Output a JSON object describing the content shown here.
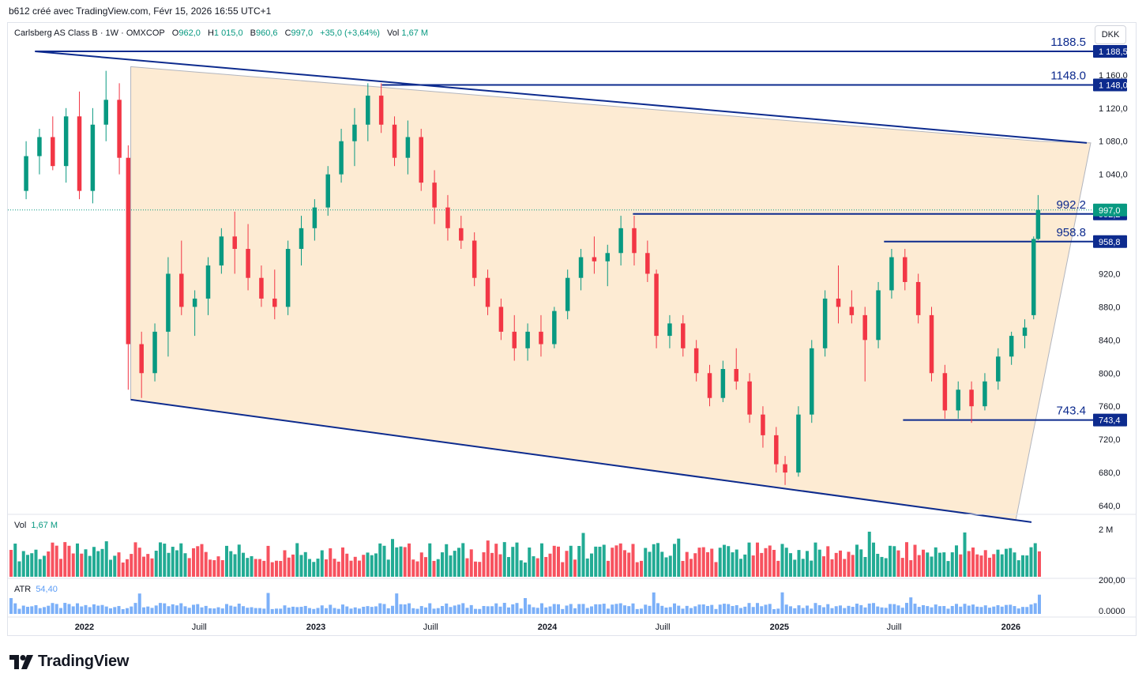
{
  "header": {
    "caption": "b612 créé avec TradingView.com, Févr 15, 2026 16:55 UTC+1",
    "symbol": "Carlsberg AS Class B · 1W · OMXCOP",
    "open_label": "O",
    "open": "962,0",
    "high_label": "H",
    "high": "1 015,0",
    "low_label": "B",
    "low": "960,6",
    "close_label": "C",
    "close": "997,0",
    "change": "+35,0 (+3,64%)",
    "vol_label": "Vol",
    "vol": "1,67 M",
    "currency": "DKK"
  },
  "colors": {
    "up": "#089981",
    "down": "#f23645",
    "line": "#0d2b8e",
    "channel_fill": "#fdebd3",
    "volume_up": "#22ab94",
    "volume_down": "#f7525f",
    "atr": "#5b9cf6"
  },
  "volume_pane": {
    "label": "Vol",
    "value": "1,67 M",
    "axis_label": "2 M"
  },
  "atr_pane": {
    "label": "ATR",
    "value": "54,40",
    "axis_top": "200,00",
    "axis_bottom": "0.0000"
  },
  "brand": {
    "name": "TradingView",
    "icon": "tradingview-logo"
  },
  "chart_data": {
    "type": "candlestick",
    "title": "Carlsberg AS Class B · 1W · OMXCOP",
    "ylim": [
      620,
      1200
    ],
    "y_ticks": [
      "1 160,0",
      "1 120,0",
      "1 080,0",
      "1 040,0",
      "920,0",
      "880,0",
      "840,0",
      "800,0",
      "760,0",
      "720,0",
      "680,0",
      "640,0"
    ],
    "x_ticks": [
      "2022",
      "Juill",
      "2023",
      "Juill",
      "2024",
      "Juill",
      "2025",
      "Juill",
      "2026"
    ],
    "x_range": [
      "2021-10",
      "2026-02"
    ],
    "grid": false,
    "last_price": {
      "value": 997.0,
      "label": "997,0"
    },
    "levels": [
      {
        "value": 1188.5,
        "label": "1188.5",
        "axis_label": "1 188,5",
        "from": "2021-10",
        "to": "2026-02"
      },
      {
        "value": 1148.0,
        "label": "1148.0",
        "axis_label": "1 148,0",
        "from": "2023-04",
        "to": "2026-02"
      },
      {
        "value": 992.2,
        "label": "992.2",
        "axis_label": "992,2",
        "from": "2024-05",
        "to": "2026-02"
      },
      {
        "value": 958.8,
        "label": "958.8",
        "axis_label": "958,8",
        "from": "2025-06",
        "to": "2026-02"
      },
      {
        "value": 743.4,
        "label": "743.4",
        "axis_label": "743,4",
        "from": "2025-07",
        "to": "2026-02"
      }
    ],
    "channel": {
      "upper": [
        [
          "2021-10",
          1188.5
        ],
        [
          "2026-02",
          1078
        ]
      ],
      "lower": [
        [
          "2022-03",
          768
        ],
        [
          "2026-02",
          622
        ]
      ],
      "fill": "#fdebd3"
    },
    "candles": [
      {
        "t": "2021-10-01",
        "o": 1020,
        "h": 1080,
        "l": 1010,
        "c": 1062
      },
      {
        "t": "2021-10-22",
        "o": 1062,
        "h": 1095,
        "l": 1040,
        "c": 1085
      },
      {
        "t": "2021-11-12",
        "o": 1085,
        "h": 1110,
        "l": 1045,
        "c": 1050
      },
      {
        "t": "2021-12-03",
        "o": 1050,
        "h": 1120,
        "l": 1030,
        "c": 1110
      },
      {
        "t": "2021-12-24",
        "o": 1110,
        "h": 1140,
        "l": 1010,
        "c": 1020
      },
      {
        "t": "2022-01-14",
        "o": 1020,
        "h": 1120,
        "l": 1005,
        "c": 1100
      },
      {
        "t": "2022-02-04",
        "o": 1100,
        "h": 1165,
        "l": 1080,
        "c": 1130
      },
      {
        "t": "2022-02-25",
        "o": 1130,
        "h": 1150,
        "l": 1040,
        "c": 1060
      },
      {
        "t": "2022-03-11",
        "o": 1060,
        "h": 1075,
        "l": 780,
        "c": 835
      },
      {
        "t": "2022-04-01",
        "o": 835,
        "h": 850,
        "l": 770,
        "c": 800
      },
      {
        "t": "2022-04-22",
        "o": 800,
        "h": 860,
        "l": 790,
        "c": 850
      },
      {
        "t": "2022-05-13",
        "o": 850,
        "h": 940,
        "l": 820,
        "c": 920
      },
      {
        "t": "2022-06-03",
        "o": 920,
        "h": 960,
        "l": 870,
        "c": 880
      },
      {
        "t": "2022-06-24",
        "o": 880,
        "h": 900,
        "l": 845,
        "c": 890
      },
      {
        "t": "2022-07-15",
        "o": 890,
        "h": 940,
        "l": 870,
        "c": 930
      },
      {
        "t": "2022-08-05",
        "o": 930,
        "h": 975,
        "l": 920,
        "c": 965
      },
      {
        "t": "2022-08-26",
        "o": 965,
        "h": 995,
        "l": 920,
        "c": 950
      },
      {
        "t": "2022-09-16",
        "o": 950,
        "h": 980,
        "l": 900,
        "c": 915
      },
      {
        "t": "2022-10-07",
        "o": 915,
        "h": 930,
        "l": 880,
        "c": 890
      },
      {
        "t": "2022-10-28",
        "o": 890,
        "h": 925,
        "l": 865,
        "c": 880
      },
      {
        "t": "2022-11-18",
        "o": 880,
        "h": 960,
        "l": 870,
        "c": 950
      },
      {
        "t": "2022-12-09",
        "o": 950,
        "h": 990,
        "l": 930,
        "c": 975
      },
      {
        "t": "2022-12-30",
        "o": 975,
        "h": 1010,
        "l": 960,
        "c": 1000
      },
      {
        "t": "2023-01-20",
        "o": 1000,
        "h": 1050,
        "l": 990,
        "c": 1040
      },
      {
        "t": "2023-02-10",
        "o": 1040,
        "h": 1095,
        "l": 1030,
        "c": 1080
      },
      {
        "t": "2023-03-03",
        "o": 1080,
        "h": 1120,
        "l": 1050,
        "c": 1100
      },
      {
        "t": "2023-03-24",
        "o": 1100,
        "h": 1150,
        "l": 1080,
        "c": 1135
      },
      {
        "t": "2023-04-14",
        "o": 1135,
        "h": 1150,
        "l": 1090,
        "c": 1100
      },
      {
        "t": "2023-05-05",
        "o": 1100,
        "h": 1110,
        "l": 1050,
        "c": 1060
      },
      {
        "t": "2023-05-26",
        "o": 1060,
        "h": 1105,
        "l": 1040,
        "c": 1085
      },
      {
        "t": "2023-06-16",
        "o": 1085,
        "h": 1095,
        "l": 1020,
        "c": 1030
      },
      {
        "t": "2023-07-07",
        "o": 1030,
        "h": 1045,
        "l": 980,
        "c": 1000
      },
      {
        "t": "2023-07-28",
        "o": 1000,
        "h": 1015,
        "l": 960,
        "c": 975
      },
      {
        "t": "2023-08-18",
        "o": 975,
        "h": 990,
        "l": 950,
        "c": 960
      },
      {
        "t": "2023-09-08",
        "o": 960,
        "h": 970,
        "l": 905,
        "c": 915
      },
      {
        "t": "2023-09-29",
        "o": 915,
        "h": 925,
        "l": 870,
        "c": 880
      },
      {
        "t": "2023-10-20",
        "o": 880,
        "h": 890,
        "l": 840,
        "c": 850
      },
      {
        "t": "2023-11-10",
        "o": 850,
        "h": 870,
        "l": 815,
        "c": 830
      },
      {
        "t": "2023-12-01",
        "o": 830,
        "h": 860,
        "l": 815,
        "c": 850
      },
      {
        "t": "2023-12-22",
        "o": 850,
        "h": 870,
        "l": 820,
        "c": 835
      },
      {
        "t": "2024-01-12",
        "o": 835,
        "h": 880,
        "l": 830,
        "c": 875
      },
      {
        "t": "2024-02-02",
        "o": 875,
        "h": 925,
        "l": 865,
        "c": 915
      },
      {
        "t": "2024-02-23",
        "o": 915,
        "h": 950,
        "l": 900,
        "c": 940
      },
      {
        "t": "2024-03-15",
        "o": 940,
        "h": 965,
        "l": 920,
        "c": 935
      },
      {
        "t": "2024-04-05",
        "o": 935,
        "h": 955,
        "l": 905,
        "c": 945
      },
      {
        "t": "2024-04-26",
        "o": 945,
        "h": 990,
        "l": 930,
        "c": 975
      },
      {
        "t": "2024-05-17",
        "o": 975,
        "h": 990,
        "l": 930,
        "c": 945
      },
      {
        "t": "2024-06-07",
        "o": 945,
        "h": 960,
        "l": 910,
        "c": 920
      },
      {
        "t": "2024-06-21",
        "o": 920,
        "h": 925,
        "l": 830,
        "c": 845
      },
      {
        "t": "2024-07-12",
        "o": 845,
        "h": 870,
        "l": 830,
        "c": 860
      },
      {
        "t": "2024-08-02",
        "o": 860,
        "h": 870,
        "l": 820,
        "c": 830
      },
      {
        "t": "2024-08-23",
        "o": 830,
        "h": 840,
        "l": 790,
        "c": 800
      },
      {
        "t": "2024-09-13",
        "o": 800,
        "h": 810,
        "l": 760,
        "c": 770
      },
      {
        "t": "2024-10-04",
        "o": 770,
        "h": 815,
        "l": 765,
        "c": 805
      },
      {
        "t": "2024-10-25",
        "o": 805,
        "h": 830,
        "l": 780,
        "c": 790
      },
      {
        "t": "2024-11-15",
        "o": 790,
        "h": 800,
        "l": 740,
        "c": 750
      },
      {
        "t": "2024-12-06",
        "o": 750,
        "h": 760,
        "l": 710,
        "c": 725
      },
      {
        "t": "2024-12-27",
        "o": 725,
        "h": 735,
        "l": 680,
        "c": 690
      },
      {
        "t": "2025-01-10",
        "o": 690,
        "h": 700,
        "l": 665,
        "c": 680
      },
      {
        "t": "2025-01-31",
        "o": 680,
        "h": 760,
        "l": 675,
        "c": 750
      },
      {
        "t": "2025-02-21",
        "o": 750,
        "h": 840,
        "l": 740,
        "c": 830
      },
      {
        "t": "2025-03-14",
        "o": 830,
        "h": 900,
        "l": 820,
        "c": 890
      },
      {
        "t": "2025-04-04",
        "o": 890,
        "h": 930,
        "l": 860,
        "c": 880
      },
      {
        "t": "2025-04-25",
        "o": 880,
        "h": 900,
        "l": 860,
        "c": 870
      },
      {
        "t": "2025-05-16",
        "o": 870,
        "h": 880,
        "l": 790,
        "c": 840
      },
      {
        "t": "2025-06-06",
        "o": 840,
        "h": 910,
        "l": 830,
        "c": 900
      },
      {
        "t": "2025-06-27",
        "o": 900,
        "h": 950,
        "l": 890,
        "c": 940
      },
      {
        "t": "2025-07-18",
        "o": 940,
        "h": 950,
        "l": 900,
        "c": 910
      },
      {
        "t": "2025-08-08",
        "o": 910,
        "h": 920,
        "l": 860,
        "c": 870
      },
      {
        "t": "2025-08-29",
        "o": 870,
        "h": 880,
        "l": 790,
        "c": 800
      },
      {
        "t": "2025-09-19",
        "o": 800,
        "h": 810,
        "l": 745,
        "c": 755
      },
      {
        "t": "2025-10-10",
        "o": 755,
        "h": 790,
        "l": 745,
        "c": 780
      },
      {
        "t": "2025-10-31",
        "o": 780,
        "h": 790,
        "l": 740,
        "c": 760
      },
      {
        "t": "2025-11-21",
        "o": 760,
        "h": 800,
        "l": 755,
        "c": 790
      },
      {
        "t": "2025-12-12",
        "o": 790,
        "h": 830,
        "l": 780,
        "c": 820
      },
      {
        "t": "2026-01-02",
        "o": 820,
        "h": 850,
        "l": 810,
        "c": 845
      },
      {
        "t": "2026-01-23",
        "o": 845,
        "h": 865,
        "l": 830,
        "c": 855
      },
      {
        "t": "2026-02-06",
        "o": 870,
        "h": 965,
        "l": 865,
        "c": 962
      },
      {
        "t": "2026-02-13",
        "o": 962,
        "h": 1015,
        "l": 960.6,
        "c": 997
      }
    ]
  }
}
